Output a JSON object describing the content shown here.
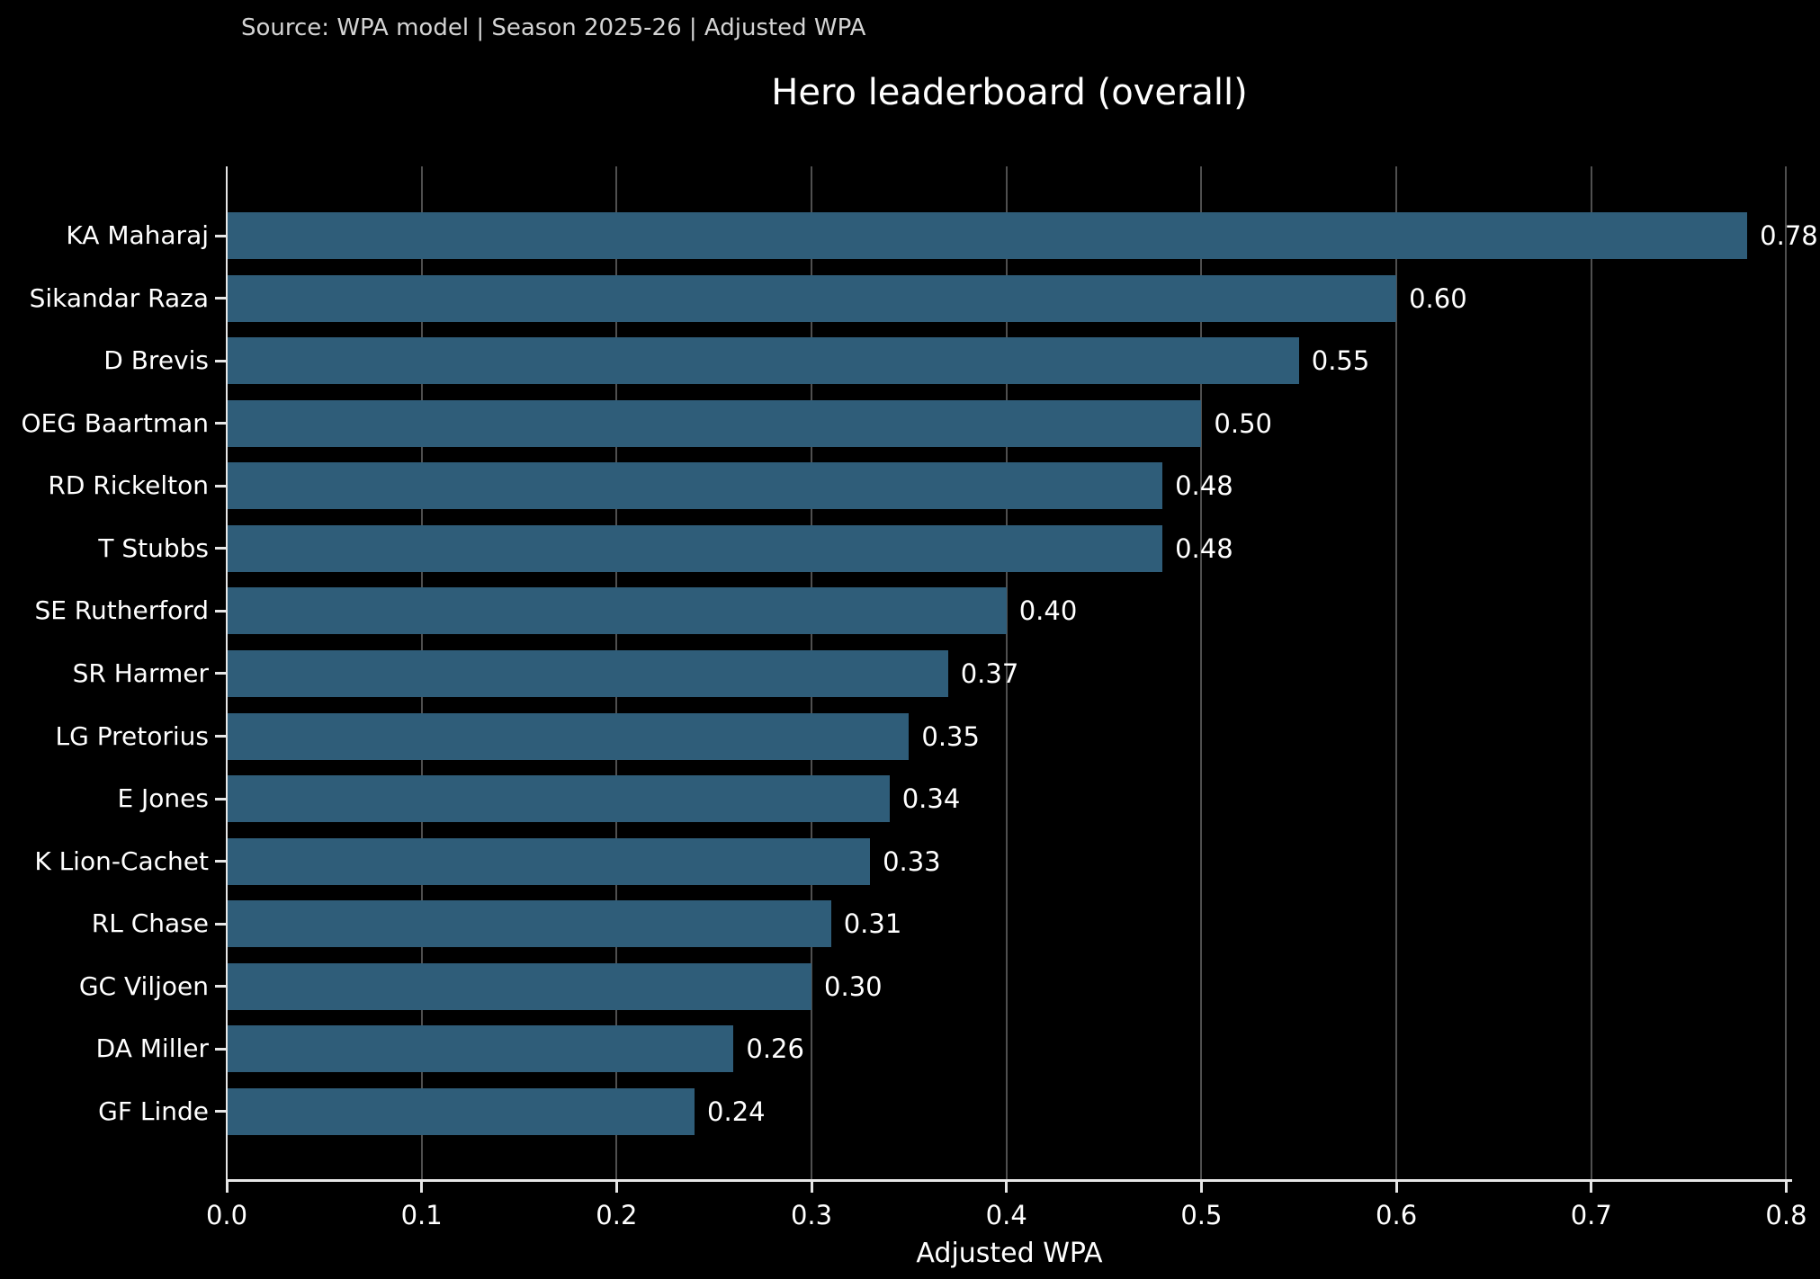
{
  "source_note": "Source: WPA model | Season 2025-26 | Adjusted WPA",
  "chart_data": {
    "type": "bar",
    "orientation": "horizontal",
    "title": "Hero leaderboard (overall)",
    "xlabel": "Adjusted WPA",
    "ylabel": "",
    "categories": [
      "KA Maharaj",
      "Sikandar Raza",
      "D Brevis",
      "OEG Baartman",
      "RD Rickelton",
      "T Stubbs",
      "SE Rutherford",
      "SR Harmer",
      "LG Pretorius",
      "E Jones",
      "K Lion-Cachet",
      "RL Chase",
      "GC Viljoen",
      "DA Miller",
      "GF Linde"
    ],
    "values": [
      0.78,
      0.6,
      0.55,
      0.5,
      0.48,
      0.48,
      0.4,
      0.37,
      0.35,
      0.34,
      0.33,
      0.31,
      0.3,
      0.26,
      0.24
    ],
    "value_labels": [
      "0.78",
      "0.60",
      "0.55",
      "0.50",
      "0.48",
      "0.48",
      "0.40",
      "0.37",
      "0.35",
      "0.34",
      "0.33",
      "0.31",
      "0.30",
      "0.26",
      "0.24"
    ],
    "sort_order": "descending top to bottom",
    "xlim": [
      0,
      0.803
    ],
    "xticks": [
      0.0,
      0.1,
      0.2,
      0.3,
      0.4,
      0.5,
      0.6,
      0.7,
      0.8
    ],
    "xtick_labels": [
      "0.0",
      "0.1",
      "0.2",
      "0.3",
      "0.4",
      "0.5",
      "0.6",
      "0.7",
      "0.8"
    ],
    "grid": {
      "axis": "x",
      "on": true
    },
    "legend": {
      "visible": false
    }
  },
  "colors": {
    "background": "#000000",
    "bar_fill": "#2F5D79",
    "gridline": "#4f4f4f",
    "axis_line": "#e6e6e6",
    "title_text": "#ffffff",
    "label_text": "#ffffff",
    "source_text": "#d4d4d4"
  }
}
